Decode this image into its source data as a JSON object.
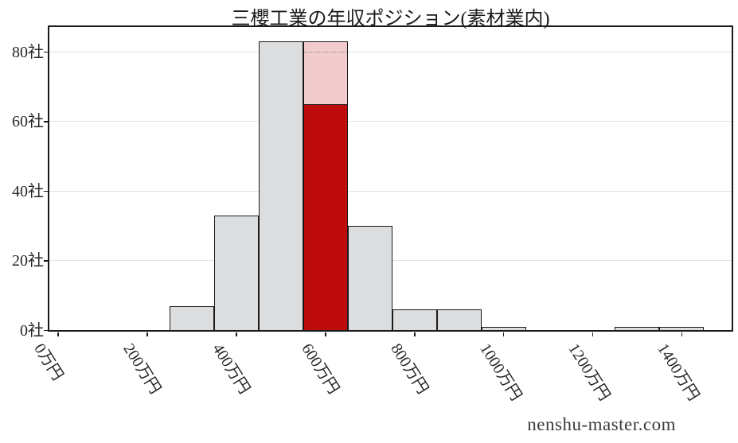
{
  "chart_data": {
    "type": "bar",
    "title": "三櫻工業の年収ポジション(素材業内)",
    "xlabel": "",
    "ylabel": "",
    "bin_width": 100,
    "bins": [
      {
        "range_start": 250,
        "range_end": 350,
        "count": 7,
        "highlighted": false
      },
      {
        "range_start": 350,
        "range_end": 450,
        "count": 33,
        "highlighted": false
      },
      {
        "range_start": 450,
        "range_end": 550,
        "count": 83,
        "highlighted": false
      },
      {
        "range_start": 550,
        "range_end": 650,
        "count": 83,
        "highlighted": true
      },
      {
        "range_start": 650,
        "range_end": 750,
        "count": 30,
        "highlighted": false
      },
      {
        "range_start": 750,
        "range_end": 850,
        "count": 6,
        "highlighted": false
      },
      {
        "range_start": 850,
        "range_end": 950,
        "count": 6,
        "highlighted": false
      },
      {
        "range_start": 950,
        "range_end": 1050,
        "count": 1,
        "highlighted": false
      },
      {
        "range_start": 1050,
        "range_end": 1150,
        "count": 0,
        "highlighted": false
      },
      {
        "range_start": 1150,
        "range_end": 1250,
        "count": 0,
        "highlighted": false
      },
      {
        "range_start": 1250,
        "range_end": 1350,
        "count": 1,
        "highlighted": false
      },
      {
        "range_start": 1350,
        "range_end": 1450,
        "count": 1,
        "highlighted": false
      }
    ],
    "highlight": {
      "bin_start": 550,
      "bin_end": 650,
      "bin_total_count": 83,
      "company_level": 65
    },
    "x_ticks": [
      {
        "value": 0,
        "label": "0万円"
      },
      {
        "value": 200,
        "label": "200万円"
      },
      {
        "value": 400,
        "label": "400万円"
      },
      {
        "value": 600,
        "label": "600万円"
      },
      {
        "value": 800,
        "label": "800万円"
      },
      {
        "value": 1000,
        "label": "1000万円"
      },
      {
        "value": 1200,
        "label": "1200万円"
      },
      {
        "value": 1400,
        "label": "1400万円"
      }
    ],
    "y_ticks": [
      {
        "value": 0,
        "label": "0社"
      },
      {
        "value": 20,
        "label": "20社"
      },
      {
        "value": 40,
        "label": "40社"
      },
      {
        "value": 60,
        "label": "60社"
      },
      {
        "value": 80,
        "label": "80社"
      }
    ],
    "xlim": [
      -20,
      1512
    ],
    "ylim": [
      0,
      87.2
    ],
    "grid": "horizontal",
    "legend": "none"
  },
  "colors": {
    "bar_fill": "#dcddde",
    "bar_edge": "#1a1a1a",
    "highlight_red": "#be0b0b",
    "highlight_pink": "#f2cccd",
    "grid_line": "#e3e3e3",
    "axis": "#1a1a1a",
    "text": "#262626"
  },
  "watermark": {
    "text": "nenshu-master.com"
  }
}
